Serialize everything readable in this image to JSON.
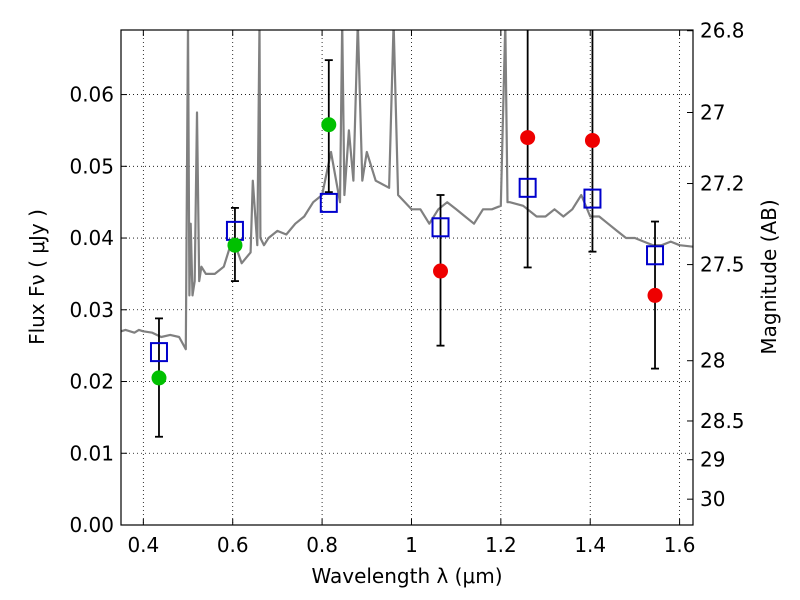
{
  "chart_data": {
    "type": "scatter",
    "title": "",
    "xlabel": "Wavelength  λ (μm)",
    "ylabel": "Flux  Fν  ( μJy )",
    "ylabel_right": "Magnitude (AB)",
    "xlim": [
      0.35,
      1.63
    ],
    "ylim": [
      0.0,
      0.069
    ],
    "grid": true,
    "x_ticks": [
      0.4,
      0.6,
      0.8,
      1.0,
      1.2,
      1.4,
      1.6
    ],
    "x_tick_labels": [
      "0.4",
      "0.6",
      "0.8",
      "1",
      "1.2",
      "1.4",
      "1.6"
    ],
    "y_ticks": [
      0.0,
      0.01,
      0.02,
      0.03,
      0.04,
      0.05,
      0.06
    ],
    "y_tick_labels": [
      "0.00",
      "0.01",
      "0.02",
      "0.03",
      "0.04",
      "0.05",
      "0.06"
    ],
    "right_ticks": [
      {
        "flux": 0.0689,
        "label": "26.8"
      },
      {
        "flux": 0.0575,
        "label": "27"
      },
      {
        "flux": 0.0476,
        "label": "27.2"
      },
      {
        "flux": 0.0363,
        "label": "27.5"
      },
      {
        "flux": 0.0229,
        "label": "28"
      },
      {
        "flux": 0.0145,
        "label": "28.5"
      },
      {
        "flux": 0.0091,
        "label": "29"
      },
      {
        "flux": 0.0036,
        "label": "30"
      }
    ],
    "colors": {
      "sed": "#808080",
      "model": "#0000cc",
      "green": "#00c000",
      "red": "#ee0000",
      "errorbar": "#000000"
    },
    "series": [
      {
        "name": "model template spectrum",
        "type": "line",
        "x": [
          0.35,
          0.36,
          0.38,
          0.39,
          0.4,
          0.42,
          0.44,
          0.46,
          0.48,
          0.495,
          0.5,
          0.503,
          0.506,
          0.51,
          0.515,
          0.52,
          0.525,
          0.53,
          0.54,
          0.56,
          0.58,
          0.6,
          0.62,
          0.64,
          0.645,
          0.655,
          0.66,
          0.662,
          0.67,
          0.68,
          0.7,
          0.72,
          0.74,
          0.76,
          0.78,
          0.8,
          0.82,
          0.84,
          0.845,
          0.85,
          0.86,
          0.87,
          0.88,
          0.89,
          0.9,
          0.92,
          0.95,
          0.96,
          0.97,
          1.0,
          1.02,
          1.04,
          1.06,
          1.08,
          1.1,
          1.12,
          1.14,
          1.16,
          1.18,
          1.2,
          1.21,
          1.215,
          1.22,
          1.25,
          1.28,
          1.3,
          1.32,
          1.34,
          1.36,
          1.38,
          1.4,
          1.42,
          1.44,
          1.46,
          1.48,
          1.5,
          1.52,
          1.54,
          1.56,
          1.58,
          1.6,
          1.63
        ],
        "y": [
          0.027,
          0.0272,
          0.0268,
          0.0272,
          0.027,
          0.0268,
          0.0262,
          0.0265,
          0.0262,
          0.0245,
          0.07,
          0.032,
          0.042,
          0.032,
          0.034,
          0.0575,
          0.034,
          0.036,
          0.035,
          0.035,
          0.036,
          0.04,
          0.0365,
          0.038,
          0.048,
          0.039,
          0.07,
          0.04,
          0.039,
          0.04,
          0.041,
          0.0405,
          0.042,
          0.043,
          0.045,
          0.046,
          0.052,
          0.045,
          0.07,
          0.046,
          0.055,
          0.048,
          0.07,
          0.048,
          0.052,
          0.048,
          0.047,
          0.07,
          0.046,
          0.044,
          0.044,
          0.042,
          0.044,
          0.045,
          0.044,
          0.043,
          0.042,
          0.044,
          0.044,
          0.0445,
          0.07,
          0.045,
          0.045,
          0.0445,
          0.043,
          0.043,
          0.044,
          0.043,
          0.044,
          0.046,
          0.043,
          0.043,
          0.042,
          0.041,
          0.04,
          0.04,
          0.0395,
          0.039,
          0.039,
          0.0395,
          0.039,
          0.0388
        ]
      },
      {
        "name": "model photometry",
        "marker": "open square",
        "x": [
          0.435,
          0.605,
          0.815,
          1.065,
          1.26,
          1.405,
          1.545
        ],
        "y": [
          0.0241,
          0.041,
          0.0449,
          0.0415,
          0.047,
          0.0455,
          0.0376
        ]
      },
      {
        "name": "measured flux",
        "marker": "filled circle",
        "x": [
          0.435,
          0.605,
          0.815,
          1.065,
          1.26,
          1.405,
          1.545
        ],
        "y": [
          0.0205,
          0.039,
          0.0558,
          0.0354,
          0.054,
          0.0536,
          0.032
        ],
        "point_colors": [
          "green",
          "green",
          "green",
          "red",
          "red",
          "red",
          "red"
        ],
        "err_low": [
          0.0082,
          0.005,
          0.0094,
          0.0104,
          0.0181,
          0.0155,
          0.0102
        ],
        "err_high": [
          0.0083,
          0.0052,
          0.009,
          0.0106,
          0.016,
          0.015,
          0.0103
        ],
        "err_high_open": [
          false,
          false,
          false,
          false,
          true,
          true,
          false
        ]
      }
    ]
  }
}
